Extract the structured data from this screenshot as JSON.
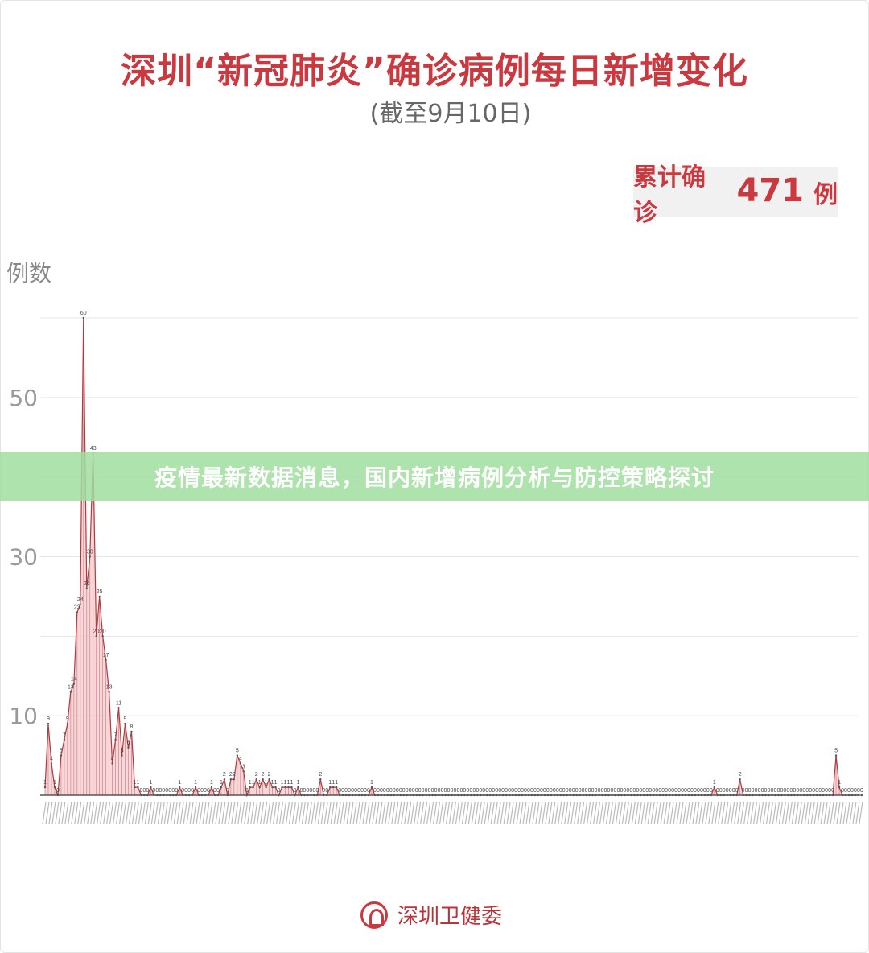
{
  "title": "深圳“新冠肺炎”确诊病例每日新增变化",
  "subtitle": "(截至9月10日)",
  "total": {
    "label": "累计确诊",
    "value": "471",
    "unit": "例"
  },
  "banner": "疫情最新数据消息，国内新增病例分析与防控策略探讨",
  "footer": {
    "org": "深圳卫健委"
  },
  "colors": {
    "title": "#c9393f",
    "line": "#b03a40",
    "fill": "#f3c8ca",
    "banner": "#a0dea0"
  },
  "chart_data": {
    "type": "area",
    "title": "深圳“新冠肺炎”确诊病例每日新增变化",
    "ylabel": "例数",
    "ylim": [
      0,
      60
    ],
    "yticks": [
      10,
      30,
      50
    ],
    "grid": true,
    "values": [
      1,
      9,
      4,
      1,
      0,
      5,
      7,
      9,
      13,
      14,
      23,
      24,
      60,
      26,
      30,
      43,
      20,
      25,
      20,
      17,
      13,
      4,
      7,
      11,
      5,
      9,
      6,
      8,
      1,
      1,
      0,
      0,
      0,
      1,
      0,
      0,
      0,
      0,
      0,
      0,
      0,
      0,
      1,
      0,
      0,
      0,
      0,
      1,
      0,
      0,
      0,
      0,
      1,
      0,
      0,
      1,
      2,
      0,
      2,
      2,
      5,
      4,
      3,
      0,
      1,
      1,
      2,
      1,
      2,
      1,
      2,
      1,
      1,
      0,
      1,
      1,
      1,
      1,
      0,
      1,
      0,
      0,
      0,
      0,
      0,
      0,
      2,
      0,
      0,
      1,
      1,
      1,
      0,
      0,
      0,
      0,
      0,
      0,
      0,
      0,
      0,
      0,
      1,
      0,
      0,
      0,
      0,
      0,
      0,
      0,
      0,
      0,
      0,
      0,
      0,
      0,
      0,
      0,
      0,
      0,
      0,
      0,
      0,
      0,
      0,
      0,
      0,
      0,
      0,
      0,
      0,
      0,
      0,
      0,
      0,
      0,
      0,
      0,
      0,
      0,
      0,
      0,
      0,
      0,
      0,
      0,
      0,
      0,
      0,
      0,
      0,
      0,
      0,
      0,
      0,
      0,
      0,
      0,
      0,
      0,
      0,
      0,
      0,
      0,
      0,
      0,
      0,
      0,
      0,
      0,
      0,
      0,
      0,
      0,
      0,
      0,
      0,
      0,
      0,
      0,
      0,
      0,
      0,
      0,
      0,
      0,
      0,
      0,
      0,
      0,
      0,
      0,
      0,
      0,
      0,
      0,
      0,
      0,
      0,
      0,
      0,
      0,
      0,
      0,
      0,
      0,
      0,
      0,
      0,
      1,
      0,
      0,
      0,
      0,
      0,
      0,
      0,
      2,
      0,
      0,
      0,
      0,
      0,
      0,
      0,
      0,
      0,
      0,
      0,
      0,
      0,
      0,
      0,
      0,
      0,
      0,
      0,
      0,
      0,
      0,
      0,
      0,
      0,
      0,
      0,
      0,
      0,
      5,
      1,
      0,
      0,
      0,
      0,
      0,
      0,
      0
    ]
  }
}
